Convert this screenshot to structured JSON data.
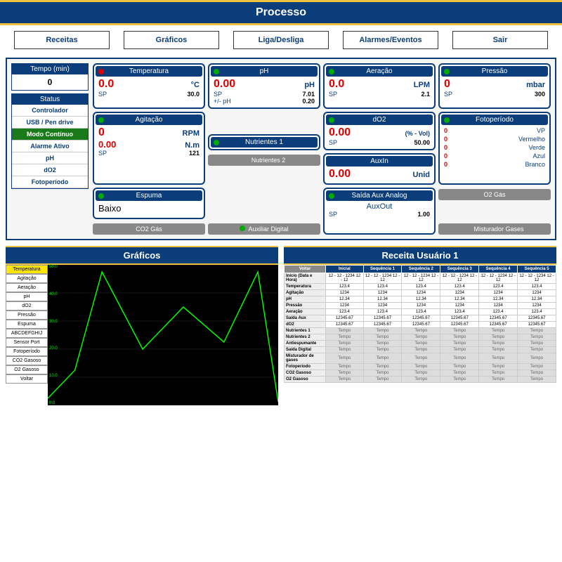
{
  "title": "Processo",
  "nav": [
    "Receitas",
    "Gráficos",
    "Liga/Desliga",
    "Alarmes/Eventos",
    "Sair"
  ],
  "tempo": {
    "label": "Tempo (min)",
    "value": "0"
  },
  "status": {
    "label": "Status",
    "items": [
      {
        "label": "Controlador",
        "active": false
      },
      {
        "label": "USB / Pen drive",
        "active": false
      },
      {
        "label": "Modo Contínuo",
        "active": true
      },
      {
        "label": "Alarme Ativo",
        "active": false
      },
      {
        "label": "pH",
        "active": false
      },
      {
        "label": "dO2",
        "active": false
      },
      {
        "label": "Fotoperíodo",
        "active": false
      }
    ]
  },
  "cards": {
    "temperatura": {
      "title": "Temperatura",
      "led": "red",
      "value": "0.0",
      "unit": "°C",
      "sp": "30.0"
    },
    "ph": {
      "title": "pH",
      "led": "green",
      "value": "0.00",
      "unit": "pH",
      "sp": "7.01",
      "extra_label": "+/- pH",
      "extra": "0.20"
    },
    "aeracao": {
      "title": "Aeração",
      "led": "green",
      "value": "0.0",
      "unit": "LPM",
      "sp": "2.1"
    },
    "pressao": {
      "title": "Pressão",
      "led": "green",
      "value": "0",
      "unit": "mbar",
      "sp": "300"
    },
    "agitacao": {
      "title": "Agitação",
      "led": "green",
      "value": "0",
      "unit": "RPM",
      "value2": "0.00",
      "unit2": "N.m",
      "sp": "121"
    },
    "nutrientes1": {
      "title": "Nutrientes 1",
      "led": "green"
    },
    "do2": {
      "title": "dO2",
      "led": "green",
      "value": "0.00",
      "unit": "(% - Vol)",
      "sp": "50.00"
    },
    "fotoperiodo": {
      "title": "Fotoperíodo",
      "led": "green",
      "rows": [
        {
          "n": "0",
          "lbl": "VP"
        },
        {
          "n": "0",
          "lbl": "Vermelho"
        },
        {
          "n": "0",
          "lbl": "Verde"
        },
        {
          "n": "0",
          "lbl": "Azul"
        },
        {
          "n": "0",
          "lbl": "Branco"
        }
      ]
    },
    "espuma": {
      "title": "Espuma",
      "led": "green",
      "text": "Baixo"
    },
    "nutrientes2": {
      "title": "Nutrientes 2",
      "led": "gray"
    },
    "auxin": {
      "title": "AuxIn",
      "value": "0.00",
      "unit": "Unid"
    },
    "o2gas": {
      "title": "O2 Gás"
    },
    "co2gas": {
      "title": "CO2 Gás"
    },
    "auxdigital": {
      "title": "Auxiliar Digital",
      "led": "green"
    },
    "saidaaux": {
      "title": "Saída Aux Analog",
      "led": "green",
      "text": "AuxOut",
      "sp": "1.00"
    },
    "misturador": {
      "title": "Misturador Gases",
      "led": "gray"
    }
  },
  "graficos": {
    "title": "Gráficos",
    "legend": [
      "Temperatura",
      "Agitação",
      "Aeração",
      "pH",
      "dO2",
      "Pressão",
      "Espuma",
      "ABCDEFGHIJ",
      "Sensor Port",
      "Fotoperíodo",
      "CO2 Gasoso",
      "O2 Gasoso",
      "Voltar"
    ],
    "legend_selected": 0,
    "y_ticks": [
      "50.0",
      "40.0",
      "30.0",
      "20.0",
      "10.0",
      "0.0"
    ],
    "line_color": "#00ff00",
    "points": [
      [
        0,
        190
      ],
      [
        40,
        150
      ],
      [
        80,
        10
      ],
      [
        140,
        120
      ],
      [
        200,
        60
      ],
      [
        260,
        110
      ],
      [
        310,
        10
      ],
      [
        340,
        195
      ]
    ]
  },
  "receita": {
    "title": "Receita Usuário 1",
    "back": "Voltar",
    "cols": [
      "Inicial",
      "Sequência 1",
      "Sequência 2",
      "Sequência 3",
      "Sequência 4",
      "Sequência 5"
    ],
    "rows": [
      {
        "lbl": "Início (Data e Hora)",
        "vals": [
          "12 - 12 - 1234 12 - 12",
          "12 - 12 - 1234 12 - 12",
          "12 - 12 - 1234 12 - 12",
          "12 - 12 - 1234 12 - 12",
          "12 - 12 - 1234 12 - 12",
          "12 - 12 - 1234 12 - 12"
        ]
      },
      {
        "lbl": "Temperatura",
        "vals": [
          "123.4",
          "123.4",
          "123.4",
          "123.4",
          "123.4",
          "123.4"
        ]
      },
      {
        "lbl": "Agitação",
        "vals": [
          "1234",
          "1234",
          "1234",
          "1234",
          "1234",
          "1234"
        ]
      },
      {
        "lbl": "pH",
        "vals": [
          "12.34",
          "12.34",
          "12.34",
          "12.34",
          "12.34",
          "12.34"
        ]
      },
      {
        "lbl": "Pressão",
        "vals": [
          "1234",
          "1234",
          "1234",
          "1234",
          "1234",
          "1234"
        ]
      },
      {
        "lbl": "Aeração",
        "vals": [
          "123.4",
          "123.4",
          "123.4",
          "123.4",
          "123.4",
          "123.4"
        ]
      },
      {
        "lbl": "Saída Aux",
        "vals": [
          "12345.67",
          "12345.67",
          "12345.67",
          "12345.67",
          "12345.67",
          "12345.67"
        ]
      },
      {
        "lbl": "dO2",
        "vals": [
          "12345.67",
          "12345.67",
          "12345.67",
          "12345.67",
          "12345.67",
          "12345.67"
        ]
      },
      {
        "lbl": "Nutrientes 1",
        "tempo": true
      },
      {
        "lbl": "Nutrientes 2",
        "tempo": true
      },
      {
        "lbl": "Antiespumante",
        "tempo": true
      },
      {
        "lbl": "Saída Digital",
        "tempo": true
      },
      {
        "lbl": "Misturador de gases",
        "tempo": true
      },
      {
        "lbl": "Fotoperíodo",
        "tempo": true
      },
      {
        "lbl": "CO2 Gasoso",
        "tempo": true
      },
      {
        "lbl": "O2 Gasoso",
        "tempo": true
      }
    ]
  }
}
